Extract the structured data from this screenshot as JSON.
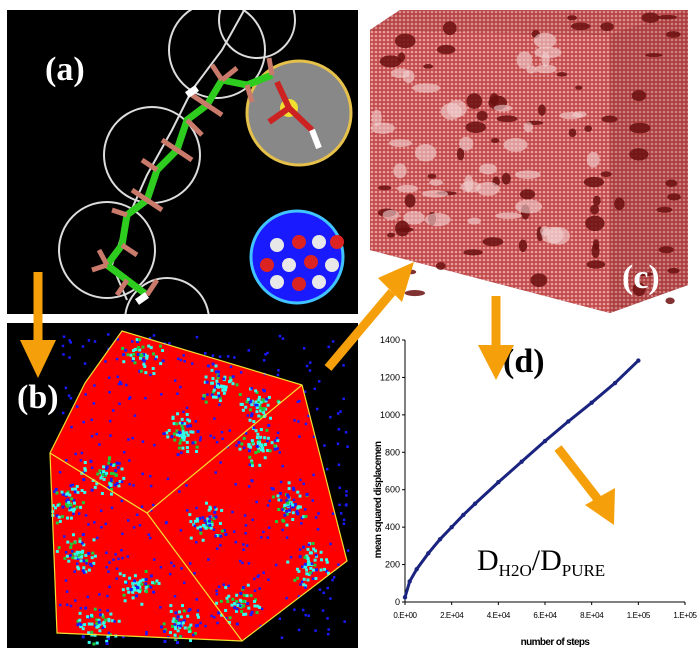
{
  "panels": {
    "a": {
      "label": "(a)"
    },
    "b": {
      "label": "(b)"
    },
    "c": {
      "label": "(c)"
    },
    "d": {
      "label": "(d)"
    }
  },
  "ratio": {
    "main1": "D",
    "sub1": "H2O",
    "main2": "/D",
    "sub2": "PURE"
  },
  "colors": {
    "arrow": "#f5a00a",
    "panel_bg": "#000000",
    "molecule": "#2ecc1f",
    "red_phase": "#ff0000",
    "blue_phase": "#1a1aff",
    "cyan_phase": "#33ffee",
    "box_red": "#c24a4a",
    "curve": "#1a237e"
  },
  "chart_data": {
    "type": "scatter",
    "xlabel": "number of steps",
    "ylabel": "mean squared displacemen",
    "xlim": [
      0,
      120000
    ],
    "ylim": [
      0,
      1400
    ],
    "xticks": [
      0,
      20000,
      40000,
      60000,
      80000,
      100000,
      120000
    ],
    "xtick_labels": [
      "0.E+00",
      "2.E+04",
      "4.E+04",
      "6.E+04",
      "8.E+04",
      "1.E+05",
      "1.E+05"
    ],
    "yticks": [
      0,
      200,
      400,
      600,
      800,
      1000,
      1200,
      1400
    ],
    "ytick_labels": [
      "0",
      "200",
      "400",
      "600",
      "800",
      "1000",
      "1200",
      "1400"
    ],
    "series": [
      {
        "x": [
          0,
          2000,
          5000,
          10000,
          15000,
          20000,
          25000,
          30000,
          40000,
          50000,
          60000,
          70000,
          80000,
          90000,
          100000
        ],
        "y": [
          25,
          110,
          175,
          260,
          335,
          400,
          465,
          525,
          640,
          750,
          860,
          965,
          1065,
          1170,
          1290
        ]
      }
    ]
  }
}
